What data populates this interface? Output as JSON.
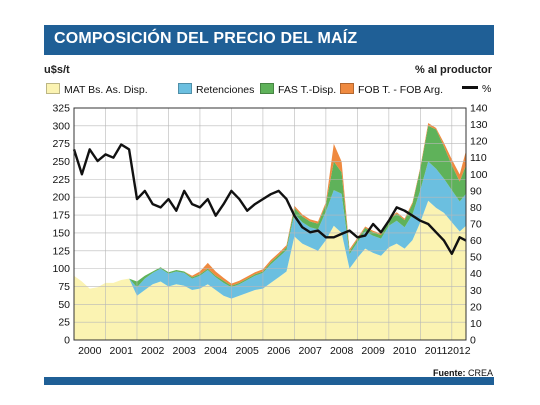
{
  "banner": {
    "title": "COMPOSICIÓN DEL PRECIO DEL MAÍZ"
  },
  "source": {
    "label": "Fuente:",
    "value": "CREA"
  },
  "chart_data": {
    "type": "area",
    "title": "COMPOSICIÓN DEL PRECIO DEL MAÍZ",
    "ylabel": "u$s/t",
    "y2label": "% al productor",
    "ylim": [
      0,
      325
    ],
    "y2lim": [
      0,
      140
    ],
    "yticks": [
      0,
      25,
      50,
      75,
      100,
      125,
      150,
      175,
      200,
      225,
      250,
      275,
      300,
      325
    ],
    "y2ticks": [
      0,
      10,
      20,
      30,
      40,
      50,
      60,
      70,
      80,
      90,
      100,
      110,
      120,
      130,
      140
    ],
    "xlim": [
      2000,
      2012.45
    ],
    "x_tick_labels": [
      "2000",
      "2001",
      "2002",
      "2003",
      "2004",
      "2005",
      "2006",
      "2007",
      "2008",
      "2009",
      "2010",
      "2011",
      "2012"
    ],
    "grid": true,
    "legend_position": "top",
    "stacked": true,
    "x": [
      2000.0,
      2000.25,
      2000.5,
      2000.75,
      2001.0,
      2001.25,
      2001.5,
      2001.75,
      2002.0,
      2002.25,
      2002.5,
      2002.75,
      2003.0,
      2003.25,
      2003.5,
      2003.75,
      2004.0,
      2004.25,
      2004.5,
      2004.75,
      2005.0,
      2005.25,
      2005.5,
      2005.75,
      2006.0,
      2006.25,
      2006.5,
      2006.75,
      2007.0,
      2007.25,
      2007.5,
      2007.75,
      2008.0,
      2008.25,
      2008.5,
      2008.75,
      2009.0,
      2009.25,
      2009.5,
      2009.75,
      2010.0,
      2010.25,
      2010.5,
      2010.75,
      2011.0,
      2011.25,
      2011.5,
      2011.75,
      2012.0,
      2012.25,
      2012.45
    ],
    "series": [
      {
        "name": "MAT Bs. As. Disp.",
        "color": "#fbf3b2",
        "values": [
          90,
          82,
          72,
          74,
          80,
          80,
          84,
          86,
          62,
          70,
          78,
          82,
          75,
          78,
          76,
          70,
          72,
          78,
          70,
          62,
          58,
          62,
          66,
          70,
          72,
          80,
          88,
          96,
          145,
          135,
          130,
          125,
          140,
          160,
          150,
          100,
          115,
          128,
          122,
          118,
          130,
          135,
          128,
          140,
          165,
          195,
          185,
          178,
          165,
          152,
          160
        ]
      },
      {
        "name": "Retenciones",
        "color": "#6bbfe0",
        "values": [
          0,
          0,
          0,
          0,
          0,
          0,
          0,
          0,
          12,
          16,
          16,
          18,
          18,
          18,
          18,
          16,
          18,
          20,
          18,
          18,
          16,
          16,
          18,
          20,
          22,
          26,
          28,
          30,
          32,
          30,
          28,
          30,
          40,
          50,
          55,
          20,
          22,
          24,
          24,
          24,
          30,
          32,
          30,
          36,
          45,
          55,
          55,
          48,
          45,
          42,
          45
        ]
      },
      {
        "name": "FAS T.-Disp.",
        "color": "#5fb25a",
        "values": [
          0,
          0,
          0,
          0,
          0,
          0,
          0,
          0,
          8,
          4,
          2,
          2,
          2,
          2,
          2,
          2,
          2,
          2,
          2,
          3,
          2,
          2,
          2,
          2,
          2,
          3,
          3,
          4,
          8,
          8,
          8,
          8,
          10,
          40,
          30,
          4,
          4,
          5,
          5,
          5,
          8,
          10,
          10,
          15,
          30,
          50,
          55,
          45,
          35,
          28,
          40
        ]
      },
      {
        "name": "FOB T. - FOB Arg.",
        "color": "#ef8a40",
        "values": [
          0,
          0,
          0,
          0,
          0,
          0,
          0,
          0,
          0,
          0,
          0,
          0,
          0,
          0,
          0,
          2,
          4,
          8,
          6,
          4,
          3,
          3,
          3,
          3,
          3,
          3,
          3,
          3,
          3,
          3,
          3,
          3,
          3,
          25,
          15,
          3,
          2,
          2,
          2,
          2,
          2,
          2,
          2,
          2,
          2,
          4,
          2,
          5,
          8,
          10,
          20
        ]
      },
      {
        "name": "%",
        "color": "#111111",
        "axis": "right",
        "type": "line",
        "values": [
          115,
          100,
          115,
          108,
          112,
          110,
          118,
          115,
          85,
          90,
          82,
          80,
          85,
          78,
          90,
          82,
          80,
          85,
          75,
          82,
          90,
          85,
          78,
          82,
          85,
          88,
          90,
          85,
          75,
          68,
          65,
          66,
          62,
          62,
          64,
          66,
          62,
          63,
          70,
          65,
          72,
          80,
          78,
          75,
          72,
          70,
          65,
          60,
          52,
          62,
          60
        ]
      }
    ]
  }
}
